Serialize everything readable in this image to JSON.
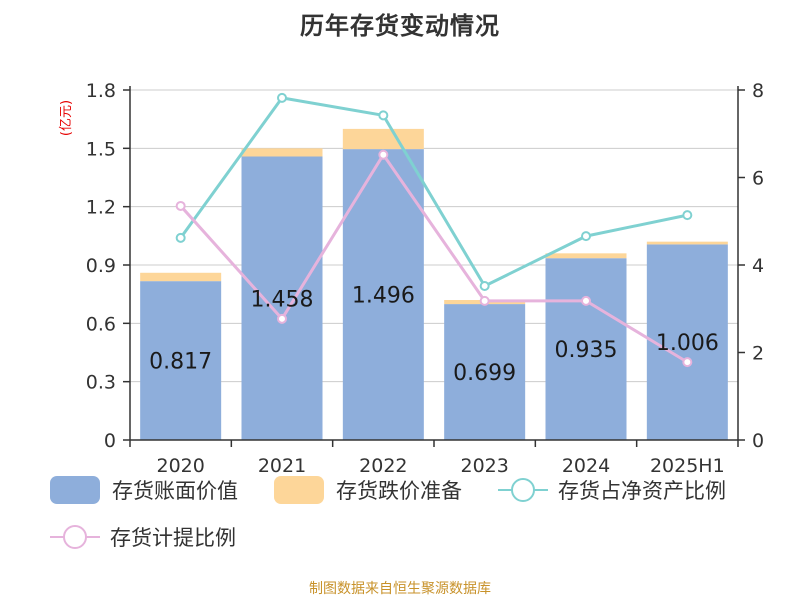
{
  "chart_data": {
    "type": "bar",
    "title": "历年存货变动情况",
    "y_left_unit": "(亿元)",
    "categories": [
      "2020",
      "2021",
      "2022",
      "2023",
      "2024",
      "2025H1"
    ],
    "y_left_ticks": [
      "0",
      "0.3",
      "0.6",
      "0.9",
      "1.2",
      "1.5",
      "1.8"
    ],
    "y_right_ticks": [
      "0",
      "2",
      "4",
      "6",
      "8"
    ],
    "ylim_left": [
      0,
      1.8
    ],
    "ylim_right": [
      0,
      8
    ],
    "stacked": true,
    "grid": true,
    "legend_position": "bottom",
    "series": [
      {
        "name": "存货账面价值",
        "kind": "bar",
        "axis": "left",
        "color": "#8eaedb",
        "values": [
          0.817,
          1.458,
          1.496,
          0.699,
          0.935,
          1.006
        ],
        "labels": [
          "0.817",
          "1.458",
          "1.496",
          "0.699",
          "0.935",
          "1.006"
        ]
      },
      {
        "name": "存货跌价准备",
        "kind": "bar",
        "axis": "left",
        "color": "#fdd699",
        "values": [
          0.043,
          0.042,
          0.104,
          0.021,
          0.025,
          0.014
        ]
      },
      {
        "name": "存货占净资产比例",
        "kind": "line",
        "axis": "right",
        "color": "#7fd1d1",
        "values": [
          4.62,
          7.82,
          7.42,
          3.52,
          4.66,
          5.14
        ]
      },
      {
        "name": "存货计提比例",
        "kind": "line",
        "axis": "right",
        "color": "#e6b3dc",
        "values": [
          5.35,
          2.77,
          6.52,
          3.18,
          3.18,
          1.78
        ]
      }
    ]
  },
  "source_text": "制图数据来自恒生聚源数据库"
}
